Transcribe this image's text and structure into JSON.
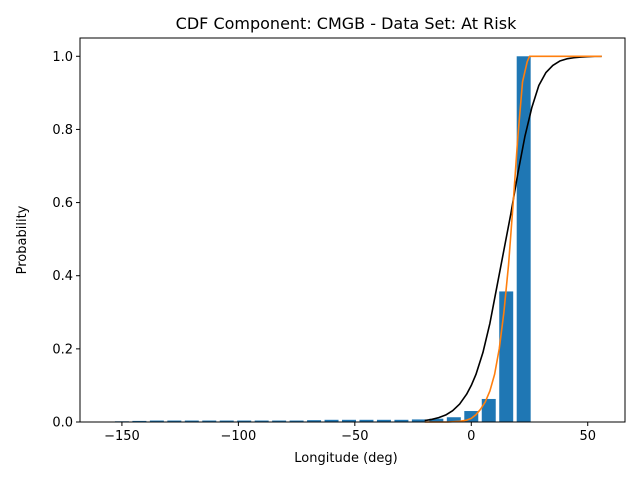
{
  "chart_data": {
    "type": "bar",
    "title": "CDF Component: CMGB - Data Set: At Risk",
    "xlabel": "Longitude (deg)",
    "ylabel": "Probability",
    "xlim": [
      -168,
      66
    ],
    "ylim": [
      0,
      1.05
    ],
    "grid": false,
    "xticks": [
      -150,
      -100,
      -50,
      0,
      50
    ],
    "xtick_labels": [
      "−150",
      "−100",
      "−50",
      "0",
      "50"
    ],
    "yticks": [
      0,
      0.2,
      0.4,
      0.6,
      0.8,
      1.0
    ],
    "ytick_labels": [
      "0.0",
      "0.2",
      "0.4",
      "0.6",
      "0.8",
      "1.0"
    ],
    "bar_width": 6,
    "bar_color": "#1f77b4",
    "bars": {
      "x": [
        -157.5,
        -150,
        -142.5,
        -135,
        -127.5,
        -120,
        -112.5,
        -105,
        -97.5,
        -90,
        -82.5,
        -75,
        -67.5,
        -60,
        -52.5,
        -45,
        -37.5,
        -30,
        -22.5,
        -15,
        -7.5,
        0,
        7.5,
        15,
        22.5
      ],
      "values": [
        0.001,
        0.002,
        0.003,
        0.004,
        0.004,
        0.004,
        0.004,
        0.004,
        0.004,
        0.004,
        0.004,
        0.004,
        0.005,
        0.006,
        0.006,
        0.006,
        0.006,
        0.006,
        0.007,
        0.009,
        0.013,
        0.03,
        0.063,
        0.357,
        1.0
      ]
    },
    "series": [
      {
        "color": "#000000",
        "x": [
          -20,
          -17,
          -14,
          -11,
          -8,
          -5,
          -2,
          0,
          2,
          5,
          8,
          11,
          14,
          17,
          20,
          23,
          26,
          29,
          32,
          35,
          38,
          41,
          44,
          47,
          50,
          53,
          56
        ],
        "values": [
          0.004,
          0.007,
          0.012,
          0.019,
          0.031,
          0.049,
          0.076,
          0.1,
          0.13,
          0.19,
          0.27,
          0.37,
          0.47,
          0.57,
          0.68,
          0.78,
          0.86,
          0.92,
          0.955,
          0.975,
          0.987,
          0.993,
          0.996,
          0.998,
          0.999,
          1.0,
          1.0
        ]
      },
      {
        "color": "#ff7f0e",
        "x": [
          -20,
          -15,
          -10,
          -5,
          -2,
          0,
          2,
          4,
          6,
          8,
          10,
          12,
          14,
          16,
          18,
          20,
          22,
          24,
          25,
          27,
          30,
          40,
          50,
          56
        ],
        "values": [
          0.0,
          0.0,
          0.0,
          0.002,
          0.005,
          0.01,
          0.02,
          0.035,
          0.055,
          0.085,
          0.13,
          0.2,
          0.3,
          0.43,
          0.6,
          0.78,
          0.93,
          0.985,
          1.0,
          1.0,
          1.0,
          1.0,
          1.0,
          1.0
        ]
      }
    ]
  }
}
